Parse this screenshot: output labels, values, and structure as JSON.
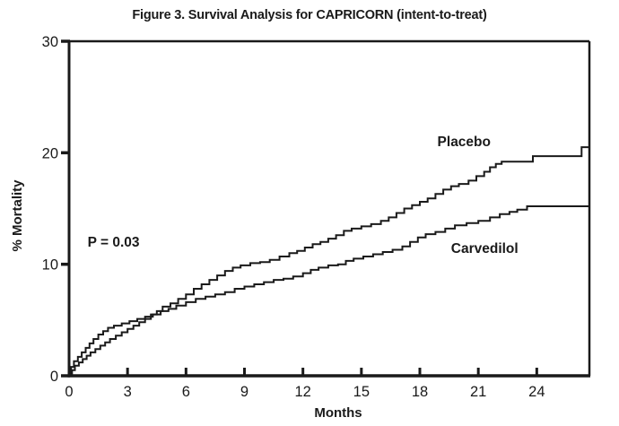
{
  "figure": {
    "title": "Figure 3. Survival Analysis for CAPRICORN (intent-to-treat)"
  },
  "chart_data": {
    "type": "line",
    "line_style": "step-after",
    "title": "Figure 3. Survival Analysis for CAPRICORN (intent-to-treat)",
    "xlabel": "Months",
    "ylabel": "% Mortality",
    "xlim": [
      0,
      26.7
    ],
    "ylim": [
      0,
      30
    ],
    "xticks": [
      0,
      3,
      6,
      9,
      12,
      15,
      18,
      21,
      24
    ],
    "yticks": [
      0,
      10,
      20,
      30
    ],
    "grid": false,
    "legend_position": "inline-labels",
    "line_color": "#1a1a1a",
    "annotations": [
      {
        "id": "p-value-label",
        "text": "P = 0.03",
        "x": 0.95,
        "y": 11.6,
        "bold": true
      }
    ],
    "series": [
      {
        "name": "Placebo",
        "label": "Placebo",
        "label_pos": {
          "x": 18.9,
          "y": 20.6
        },
        "end_value_pct": 20.5,
        "points": [
          [
            0,
            0
          ],
          [
            0.15,
            0.5
          ],
          [
            0.3,
            0.9
          ],
          [
            0.5,
            1.2
          ],
          [
            0.7,
            1.5
          ],
          [
            0.9,
            1.8
          ],
          [
            1.1,
            2.1
          ],
          [
            1.35,
            2.4
          ],
          [
            1.6,
            2.7
          ],
          [
            1.85,
            3.0
          ],
          [
            2.1,
            3.3
          ],
          [
            2.4,
            3.6
          ],
          [
            2.7,
            3.9
          ],
          [
            3.0,
            4.2
          ],
          [
            3.3,
            4.5
          ],
          [
            3.6,
            4.8
          ],
          [
            3.9,
            5.1
          ],
          [
            4.2,
            5.5
          ],
          [
            4.5,
            5.8
          ],
          [
            4.8,
            6.2
          ],
          [
            5.2,
            6.5
          ],
          [
            5.6,
            6.9
          ],
          [
            6.0,
            7.3
          ],
          [
            6.4,
            7.8
          ],
          [
            6.8,
            8.2
          ],
          [
            7.2,
            8.6
          ],
          [
            7.6,
            9.0
          ],
          [
            8.0,
            9.4
          ],
          [
            8.4,
            9.7
          ],
          [
            8.8,
            9.9
          ],
          [
            9.3,
            10.1
          ],
          [
            9.8,
            10.2
          ],
          [
            10.3,
            10.4
          ],
          [
            10.8,
            10.7
          ],
          [
            11.3,
            11.0
          ],
          [
            11.7,
            11.2
          ],
          [
            12.1,
            11.5
          ],
          [
            12.5,
            11.8
          ],
          [
            12.9,
            12.0
          ],
          [
            13.3,
            12.3
          ],
          [
            13.7,
            12.6
          ],
          [
            14.1,
            13.0
          ],
          [
            14.5,
            13.2
          ],
          [
            15.0,
            13.4
          ],
          [
            15.5,
            13.6
          ],
          [
            16.0,
            13.9
          ],
          [
            16.4,
            14.2
          ],
          [
            16.8,
            14.6
          ],
          [
            17.2,
            15.0
          ],
          [
            17.6,
            15.3
          ],
          [
            18.0,
            15.6
          ],
          [
            18.4,
            15.9
          ],
          [
            18.8,
            16.3
          ],
          [
            19.2,
            16.7
          ],
          [
            19.6,
            17.0
          ],
          [
            20.0,
            17.2
          ],
          [
            20.5,
            17.5
          ],
          [
            20.9,
            17.9
          ],
          [
            21.3,
            18.3
          ],
          [
            21.6,
            18.7
          ],
          [
            21.9,
            19.0
          ],
          [
            22.2,
            19.2
          ],
          [
            23.8,
            19.7
          ],
          [
            26.3,
            20.5
          ]
        ]
      },
      {
        "name": "Carvedilol",
        "label": "Carvedilol",
        "label_pos": {
          "x": 19.6,
          "y": 11.0
        },
        "end_value_pct": 15.2,
        "points": [
          [
            0,
            0
          ],
          [
            0.1,
            0.8
          ],
          [
            0.25,
            1.3
          ],
          [
            0.45,
            1.7
          ],
          [
            0.65,
            2.1
          ],
          [
            0.85,
            2.5
          ],
          [
            1.05,
            2.9
          ],
          [
            1.25,
            3.3
          ],
          [
            1.5,
            3.7
          ],
          [
            1.75,
            4.0
          ],
          [
            2.0,
            4.3
          ],
          [
            2.3,
            4.5
          ],
          [
            2.7,
            4.7
          ],
          [
            3.1,
            4.9
          ],
          [
            3.5,
            5.1
          ],
          [
            3.9,
            5.3
          ],
          [
            4.3,
            5.5
          ],
          [
            4.7,
            5.8
          ],
          [
            5.1,
            6.0
          ],
          [
            5.5,
            6.3
          ],
          [
            6.0,
            6.6
          ],
          [
            6.5,
            6.9
          ],
          [
            7.0,
            7.1
          ],
          [
            7.5,
            7.3
          ],
          [
            8.0,
            7.5
          ],
          [
            8.5,
            7.8
          ],
          [
            9.0,
            8.0
          ],
          [
            9.5,
            8.2
          ],
          [
            10.0,
            8.4
          ],
          [
            10.5,
            8.6
          ],
          [
            11.0,
            8.7
          ],
          [
            11.5,
            8.9
          ],
          [
            12.0,
            9.2
          ],
          [
            12.4,
            9.5
          ],
          [
            12.8,
            9.7
          ],
          [
            13.3,
            9.9
          ],
          [
            13.8,
            10.0
          ],
          [
            14.2,
            10.3
          ],
          [
            14.6,
            10.5
          ],
          [
            15.1,
            10.7
          ],
          [
            15.6,
            10.9
          ],
          [
            16.1,
            11.1
          ],
          [
            16.6,
            11.3
          ],
          [
            17.1,
            11.6
          ],
          [
            17.5,
            12.0
          ],
          [
            17.9,
            12.4
          ],
          [
            18.3,
            12.7
          ],
          [
            18.8,
            12.9
          ],
          [
            19.3,
            13.2
          ],
          [
            19.8,
            13.5
          ],
          [
            20.4,
            13.7
          ],
          [
            21.0,
            13.9
          ],
          [
            21.6,
            14.2
          ],
          [
            22.1,
            14.5
          ],
          [
            22.6,
            14.7
          ],
          [
            23.0,
            14.9
          ],
          [
            23.5,
            15.2
          ]
        ]
      }
    ]
  },
  "style": {
    "ink_color": "#1a1a1a",
    "background_color": "#ffffff"
  }
}
